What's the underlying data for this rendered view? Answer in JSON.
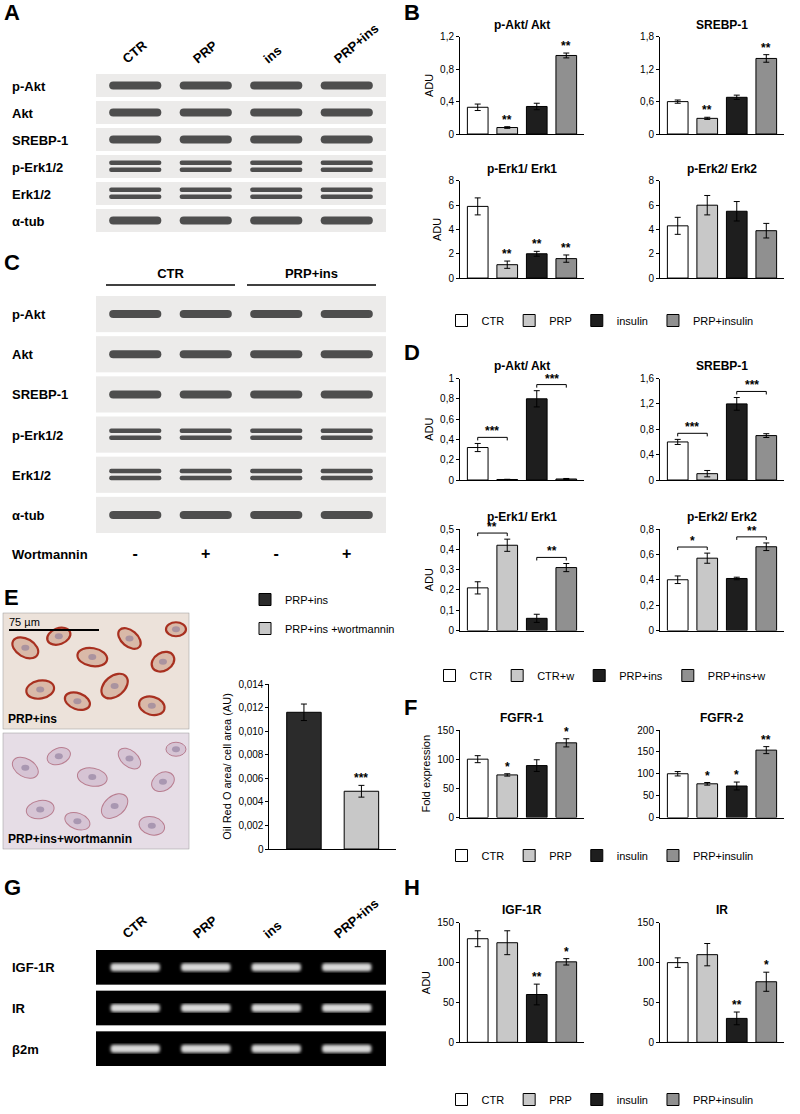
{
  "chart_data": [
    {
      "panel": "B",
      "type": "bar",
      "title": "p-Akt/ Akt",
      "ylabel": "ADU",
      "categories": [
        "CTR",
        "PRP",
        "insulin",
        "PRP+insulin"
      ],
      "values": [
        0.33,
        0.08,
        0.34,
        0.97
      ],
      "errors": [
        0.04,
        0.01,
        0.04,
        0.03
      ],
      "significance": [
        null,
        "**",
        null,
        "**"
      ],
      "colors": [
        "#ffffff",
        "#c8c8c8",
        "#1e1e1e",
        "#909090"
      ],
      "ylim": [
        0,
        1.2
      ],
      "yticks": [
        0,
        {
          "value": 0.4,
          "label": "0,4"
        },
        {
          "value": 0.8,
          "label": "0,8"
        },
        {
          "value": 1.2,
          "label": "1,2"
        }
      ],
      "tick_labels": "y",
      "legend": "bottom"
    },
    {
      "panel": "B",
      "type": "bar",
      "title": "SREBP-1",
      "categories": [
        "CTR",
        "PRP",
        "insulin",
        "PRP+insulin"
      ],
      "values": [
        0.6,
        0.29,
        0.68,
        1.4
      ],
      "errors": [
        0.03,
        0.02,
        0.04,
        0.07
      ],
      "significance": [
        null,
        "**",
        null,
        "**"
      ],
      "colors": [
        "#ffffff",
        "#c8c8c8",
        "#1e1e1e",
        "#909090"
      ],
      "ylim": [
        0,
        1.8
      ],
      "yticks": [
        0,
        {
          "value": 0.6,
          "label": "0,6"
        },
        {
          "value": 1.2,
          "label": "1,2"
        },
        {
          "value": 1.8,
          "label": "1,8"
        }
      ],
      "tick_labels": "y",
      "legend": "bottom"
    },
    {
      "panel": "B",
      "type": "bar",
      "title": "p-Erk1/ Erk1",
      "ylabel": "ADU",
      "categories": [
        "CTR",
        "PRP",
        "insulin",
        "PRP+insulin"
      ],
      "values": [
        5.9,
        1.1,
        2.0,
        1.6
      ],
      "errors": [
        0.7,
        0.3,
        0.2,
        0.3
      ],
      "significance": [
        null,
        "**",
        "**",
        "**"
      ],
      "colors": [
        "#ffffff",
        "#c8c8c8",
        "#1e1e1e",
        "#909090"
      ],
      "ylim": [
        0,
        8
      ],
      "yticks": [
        0,
        2,
        4,
        6,
        8
      ],
      "tick_labels": "y",
      "legend": "bottom"
    },
    {
      "panel": "B",
      "type": "bar",
      "title": "p-Erk2/ Erk2",
      "categories": [
        "CTR",
        "PRP",
        "insulin",
        "PRP+insulin"
      ],
      "values": [
        4.3,
        6.0,
        5.5,
        3.9
      ],
      "errors": [
        0.7,
        0.8,
        0.8,
        0.6
      ],
      "colors": [
        "#ffffff",
        "#c8c8c8",
        "#1e1e1e",
        "#909090"
      ],
      "ylim": [
        0,
        8
      ],
      "yticks": [
        0,
        2,
        4,
        6,
        8
      ],
      "tick_labels": "y",
      "legend": "bottom"
    },
    {
      "panel": "D",
      "type": "bar",
      "title": "p-Akt/ Akt",
      "ylabel": "ADU",
      "categories": [
        "CTR",
        "CTR+w",
        "PRP+ins",
        "PRP+ins+w"
      ],
      "values": [
        0.32,
        0.005,
        0.8,
        0.01
      ],
      "errors": [
        0.04,
        0.002,
        0.08,
        0.005
      ],
      "comparisons": [
        {
          "from": 0,
          "to": 1,
          "label": "***"
        },
        {
          "from": 2,
          "to": 3,
          "label": "***"
        }
      ],
      "colors": [
        "#ffffff",
        "#c8c8c8",
        "#1e1e1e",
        "#909090"
      ],
      "ylim": [
        0,
        1
      ],
      "yticks": [
        0,
        {
          "value": 0.2,
          "label": "0,2"
        },
        {
          "value": 0.4,
          "label": "0,4"
        },
        {
          "value": 0.6,
          "label": "0,6"
        },
        {
          "value": 0.8,
          "label": "0,8"
        },
        1
      ],
      "tick_labels": "y",
      "legend": "bottom"
    },
    {
      "panel": "D",
      "type": "bar",
      "title": "SREBP-1",
      "categories": [
        "CTR",
        "CTR+w",
        "PRP+ins",
        "PRP+ins+w"
      ],
      "values": [
        0.6,
        0.1,
        1.2,
        0.7
      ],
      "errors": [
        0.04,
        0.05,
        0.1,
        0.03
      ],
      "comparisons": [
        {
          "from": 0,
          "to": 1,
          "label": "***"
        },
        {
          "from": 2,
          "to": 3,
          "label": "***"
        }
      ],
      "colors": [
        "#ffffff",
        "#c8c8c8",
        "#1e1e1e",
        "#909090"
      ],
      "ylim": [
        0,
        1.6
      ],
      "yticks": [
        0,
        {
          "value": 0.4,
          "label": "0,4"
        },
        {
          "value": 0.8,
          "label": "0,8"
        },
        {
          "value": 1.2,
          "label": "1,2"
        },
        {
          "value": 1.6,
          "label": "1,6"
        }
      ],
      "tick_labels": "y",
      "legend": "bottom"
    },
    {
      "panel": "D",
      "type": "bar",
      "title": "p-Erk1/ Erk1",
      "ylabel": "ADU",
      "categories": [
        "CTR",
        "CTR+w",
        "PRP+ins",
        "PRP+ins+w"
      ],
      "values": [
        0.21,
        0.42,
        0.06,
        0.31
      ],
      "errors": [
        0.03,
        0.03,
        0.02,
        0.02
      ],
      "comparisons": [
        {
          "from": 0,
          "to": 1,
          "label": "**"
        },
        {
          "from": 2,
          "to": 3,
          "label": "**"
        }
      ],
      "colors": [
        "#ffffff",
        "#c8c8c8",
        "#1e1e1e",
        "#909090"
      ],
      "ylim": [
        0,
        0.5
      ],
      "yticks": [
        0,
        {
          "value": 0.1,
          "label": "0,1"
        },
        {
          "value": 0.2,
          "label": "0,2"
        },
        {
          "value": 0.3,
          "label": "0,3"
        },
        {
          "value": 0.4,
          "label": "0,4"
        },
        {
          "value": 0.5,
          "label": "0,5"
        }
      ],
      "tick_labels": "y",
      "legend": "bottom"
    },
    {
      "panel": "D",
      "type": "bar",
      "title": "p-Erk2/ Erk2",
      "categories": [
        "CTR",
        "CTR+w",
        "PRP+ins",
        "PRP+ins+w"
      ],
      "values": [
        0.4,
        0.57,
        0.41,
        0.66
      ],
      "errors": [
        0.03,
        0.04,
        0.01,
        0.03
      ],
      "comparisons": [
        {
          "from": 0,
          "to": 1,
          "label": "*"
        },
        {
          "from": 2,
          "to": 3,
          "label": "**"
        }
      ],
      "colors": [
        "#ffffff",
        "#c8c8c8",
        "#1e1e1e",
        "#909090"
      ],
      "ylim": [
        0,
        0.8
      ],
      "yticks": [
        0,
        {
          "value": 0.2,
          "label": "0,2"
        },
        {
          "value": 0.4,
          "label": "0,4"
        },
        {
          "value": 0.6,
          "label": "0,6"
        },
        {
          "value": 0.8,
          "label": "0,8"
        }
      ],
      "tick_labels": "y",
      "legend": "bottom"
    },
    {
      "panel": "E",
      "type": "bar",
      "ylabel": "Oil Red O area/ cell area (AU)",
      "categories": [
        "PRP+ins",
        "PRP+ins +wortmannin"
      ],
      "values": [
        0.0116,
        0.0049
      ],
      "errors": [
        0.0007,
        0.0005
      ],
      "significance": [
        null,
        "***"
      ],
      "colors": [
        "#2b2b2b",
        "#c8c8c8"
      ],
      "ylim": [
        0,
        0.014
      ],
      "yticks": [
        0,
        {
          "value": 0.002,
          "label": "0,002"
        },
        {
          "value": 0.004,
          "label": "0,004"
        },
        {
          "value": 0.006,
          "label": "0,006"
        },
        {
          "value": 0.008,
          "label": "0,008"
        },
        {
          "value": 0.01,
          "label": "0,010"
        },
        {
          "value": 0.012,
          "label": "0,012"
        },
        {
          "value": 0.014,
          "label": "0,014"
        }
      ],
      "tick_labels": "y",
      "legend": "top-right"
    },
    {
      "panel": "F",
      "type": "bar",
      "title": "FGFR-1",
      "ylabel": "Fold expression",
      "categories": [
        "CTR",
        "PRP",
        "insulin",
        "PRP+insulin"
      ],
      "values": [
        100,
        73,
        89,
        128
      ],
      "errors": [
        6,
        2,
        10,
        7
      ],
      "significance": [
        null,
        "*",
        null,
        "*"
      ],
      "colors": [
        "#ffffff",
        "#c8c8c8",
        "#1e1e1e",
        "#909090"
      ],
      "ylim": [
        0,
        150
      ],
      "yticks": [
        0,
        50,
        100,
        150
      ],
      "tick_labels": "y",
      "legend": "bottom"
    },
    {
      "panel": "F",
      "type": "bar",
      "title": "FGFR-2",
      "categories": [
        "CTR",
        "PRP",
        "insulin",
        "PRP+insulin"
      ],
      "values": [
        100,
        77,
        72,
        154
      ],
      "errors": [
        5,
        3,
        9,
        8
      ],
      "significance": [
        null,
        "*",
        "*",
        "**"
      ],
      "colors": [
        "#ffffff",
        "#c8c8c8",
        "#1e1e1e",
        "#909090"
      ],
      "ylim": [
        0,
        200
      ],
      "yticks": [
        0,
        50,
        100,
        150,
        200
      ],
      "tick_labels": "y",
      "legend": "bottom"
    },
    {
      "panel": "H",
      "type": "bar",
      "title": "IGF-1R",
      "ylabel": "ADU",
      "categories": [
        "CTR",
        "PRP",
        "insulin",
        "PRP+insulin"
      ],
      "values": [
        130,
        125,
        60,
        101
      ],
      "errors": [
        10,
        15,
        13,
        4
      ],
      "significance": [
        null,
        null,
        "**",
        "*"
      ],
      "colors": [
        "#ffffff",
        "#c8c8c8",
        "#1e1e1e",
        "#909090"
      ],
      "ylim": [
        0,
        150
      ],
      "yticks": [
        0,
        50,
        100,
        150
      ],
      "tick_labels": "y",
      "legend": "bottom"
    },
    {
      "panel": "H",
      "type": "bar",
      "title": "IR",
      "categories": [
        "CTR",
        "PRP",
        "insulin",
        "PRP+insulin"
      ],
      "values": [
        100,
        110,
        30,
        76
      ],
      "errors": [
        6,
        14,
        8,
        12
      ],
      "significance": [
        null,
        null,
        "**",
        "*"
      ],
      "colors": [
        "#ffffff",
        "#c8c8c8",
        "#1e1e1e",
        "#909090"
      ],
      "ylim": [
        0,
        150
      ],
      "yticks": [
        0,
        50,
        100,
        150
      ],
      "tick_labels": "y",
      "legend": "bottom"
    }
  ],
  "blots": [
    {
      "panel": "A",
      "columns": [
        "CTR",
        "PRP",
        "ins",
        "PRP+ins"
      ],
      "rows": [
        "p-Akt",
        "Akt",
        "SREBP-1",
        "p-Erk1/2",
        "Erk1/2",
        "α-tub"
      ]
    },
    {
      "panel": "C",
      "groups": [
        "CTR",
        "PRP+ins"
      ],
      "rows": [
        "p-Akt",
        "Akt",
        "SREBP-1",
        "p-Erk1/2",
        "Erk1/2",
        "α-tub"
      ],
      "treatment": {
        "label": "Wortmannin",
        "columns": [
          "-",
          "+",
          "-",
          "+"
        ]
      }
    }
  ],
  "gel": {
    "panel": "G",
    "columns": [
      "CTR",
      "PRP",
      "ins",
      "PRP+ins"
    ],
    "rows": [
      "IGF-1R",
      "IR",
      "β2m"
    ]
  },
  "micrograph": {
    "panel": "E",
    "scale_bar": "75 µm",
    "images": [
      "PRP+ins",
      "PRP+ins+wortmannin"
    ]
  }
}
